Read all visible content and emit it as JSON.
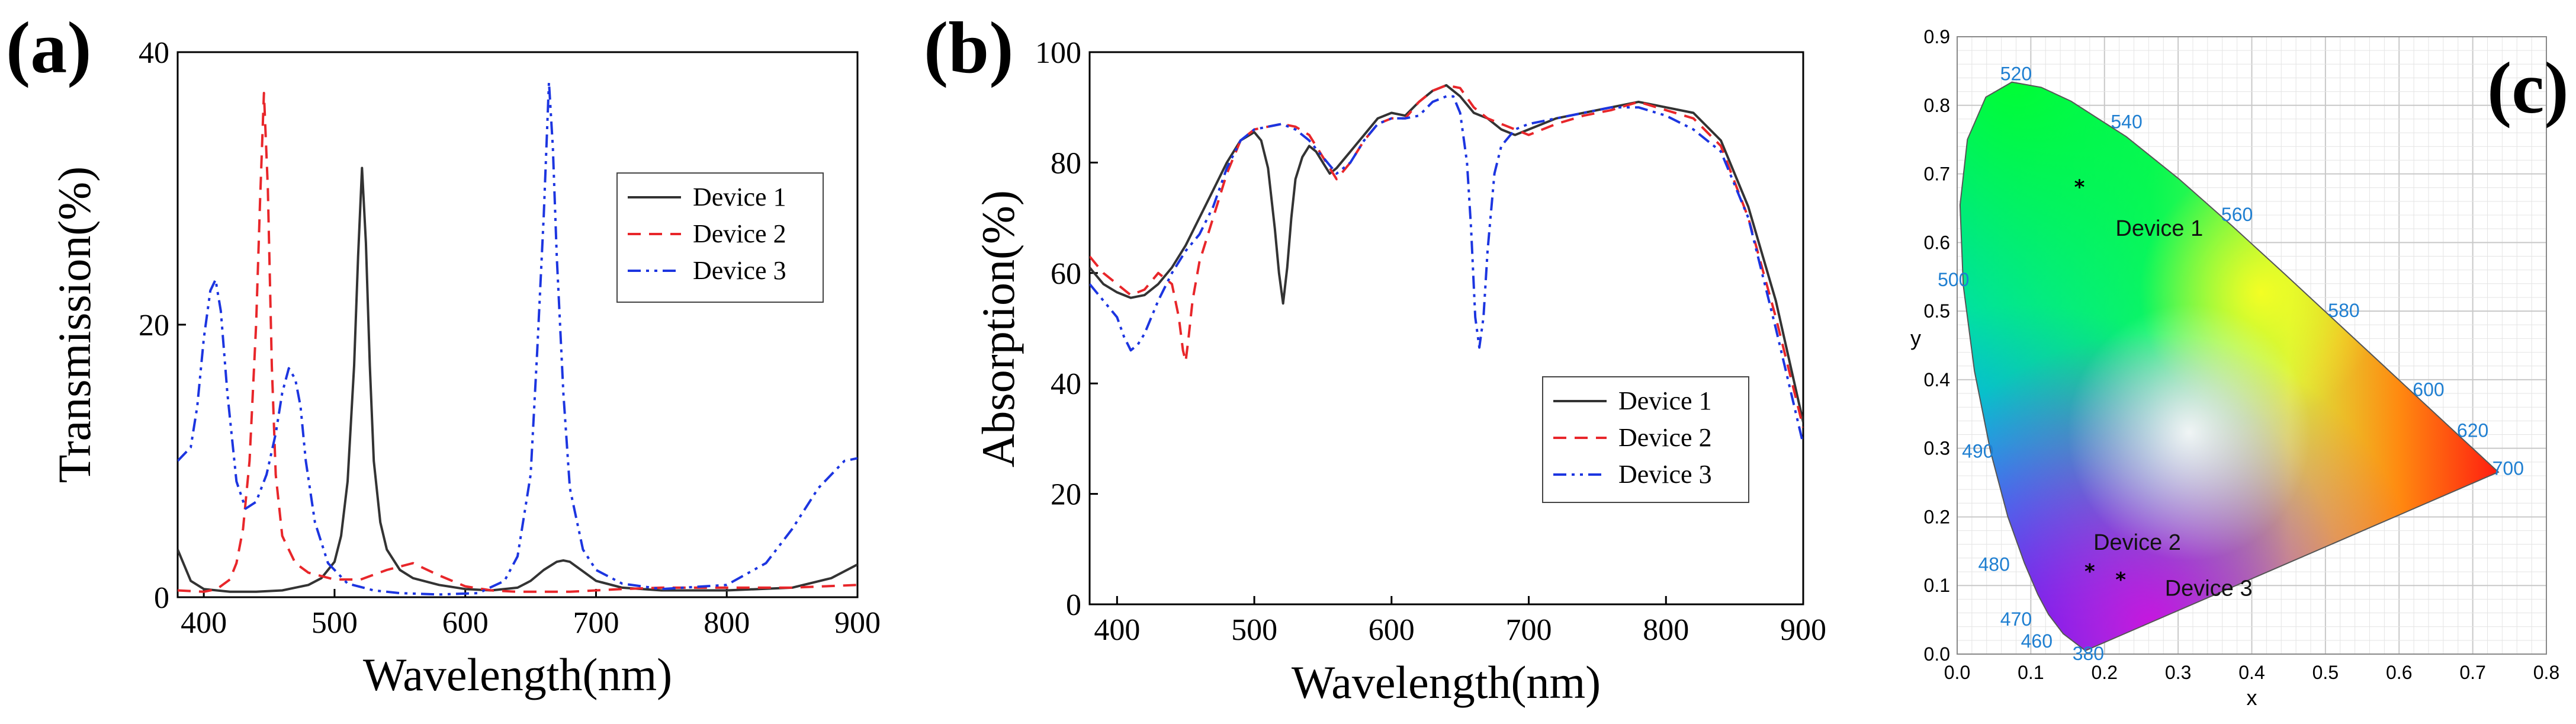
{
  "chart_data": [
    {
      "type": "line",
      "panel": "(a)",
      "xlabel": "Wavelength(nm)",
      "ylabel": "Transmission(%)",
      "xlim": [
        380,
        900
      ],
      "ylim": [
        0,
        40
      ],
      "xticks": [
        400,
        500,
        600,
        700,
        800,
        900
      ],
      "yticks": [
        0,
        20,
        40
      ],
      "legend": "center-right",
      "series": [
        {
          "name": "Device 1",
          "color": "#333333",
          "style": "solid",
          "x": [
            380,
            390,
            400,
            420,
            440,
            460,
            480,
            490,
            500,
            505,
            510,
            515,
            518,
            521,
            524,
            527,
            530,
            535,
            540,
            550,
            560,
            580,
            600,
            620,
            640,
            650,
            660,
            670,
            675,
            680,
            690,
            700,
            720,
            750,
            800,
            850,
            880,
            900
          ],
          "y": [
            3.5,
            1.2,
            0.6,
            0.4,
            0.4,
            0.5,
            0.9,
            1.4,
            2.6,
            4.5,
            8.5,
            17,
            25,
            31.5,
            26,
            17,
            10,
            5.5,
            3.5,
            2.0,
            1.4,
            0.9,
            0.6,
            0.5,
            0.7,
            1.2,
            2.0,
            2.6,
            2.7,
            2.6,
            1.9,
            1.2,
            0.7,
            0.5,
            0.5,
            0.7,
            1.4,
            2.4
          ]
        },
        {
          "name": "Device 2",
          "color": "#e8262a",
          "style": "dashed",
          "x": [
            380,
            400,
            410,
            420,
            425,
            430,
            435,
            440,
            443,
            446,
            449,
            452,
            455,
            460,
            470,
            480,
            500,
            520,
            540,
            560,
            580,
            600,
            620,
            640,
            660,
            680,
            700,
            720,
            750,
            800,
            850,
            900
          ],
          "y": [
            0.5,
            0.4,
            0.6,
            1.3,
            2.5,
            5,
            10,
            20,
            29,
            37,
            30,
            17,
            9,
            4.5,
            2.5,
            1.8,
            1.3,
            1.3,
            2.0,
            2.5,
            1.6,
            0.8,
            0.5,
            0.4,
            0.4,
            0.4,
            0.5,
            0.6,
            0.7,
            0.7,
            0.7,
            0.9
          ]
        },
        {
          "name": "Device 3",
          "color": "#1c35e0",
          "style": "dashdotdot",
          "x": [
            380,
            390,
            395,
            400,
            405,
            409,
            413,
            418,
            425,
            432,
            440,
            448,
            455,
            460,
            465,
            470,
            474,
            478,
            485,
            495,
            510,
            530,
            550,
            580,
            610,
            630,
            640,
            650,
            655,
            660,
            664,
            667,
            670,
            675,
            680,
            690,
            700,
            720,
            750,
            800,
            830,
            850,
            870,
            890,
            900
          ],
          "y": [
            10,
            11,
            14,
            19,
            22.5,
            23.3,
            21,
            15,
            8.5,
            6.5,
            7,
            9,
            12,
            15,
            16.8,
            16,
            14,
            10,
            5.5,
            2.5,
            1.0,
            0.5,
            0.3,
            0.2,
            0.3,
            1.2,
            3,
            9,
            18,
            28,
            37.8,
            33,
            25,
            15,
            8,
            3.5,
            2,
            1,
            0.6,
            0.9,
            2.5,
            5,
            8,
            10,
            10.2
          ]
        }
      ]
    },
    {
      "type": "line",
      "panel": "(b)",
      "xlabel": "Wavelength(nm)",
      "ylabel": "Absorption(%)",
      "xlim": [
        380,
        900
      ],
      "ylim": [
        0,
        100
      ],
      "xticks": [
        400,
        500,
        600,
        700,
        800,
        900
      ],
      "yticks": [
        0,
        20,
        40,
        60,
        80,
        100
      ],
      "legend": "bottom-right",
      "series": [
        {
          "name": "Device 1",
          "color": "#333333",
          "style": "solid",
          "x": [
            380,
            390,
            400,
            410,
            420,
            430,
            440,
            450,
            460,
            470,
            480,
            490,
            500,
            505,
            510,
            515,
            518,
            521,
            524,
            527,
            530,
            535,
            540,
            545,
            550,
            555,
            560,
            565,
            570,
            580,
            590,
            600,
            610,
            620,
            630,
            640,
            650,
            660,
            670,
            680,
            690,
            700,
            720,
            740,
            760,
            780,
            800,
            820,
            840,
            860,
            880,
            900
          ],
          "y": [
            61,
            58,
            56.5,
            55.5,
            56,
            58,
            61,
            65,
            70,
            75,
            80,
            84,
            85.5,
            84,
            79,
            68,
            60,
            54.5,
            61,
            70,
            77,
            81,
            83,
            82,
            80,
            78,
            79,
            80.5,
            82,
            85,
            88,
            89,
            88.5,
            91,
            93,
            94,
            92,
            89,
            88,
            86,
            85,
            86,
            88,
            89,
            90,
            91,
            90,
            89,
            84,
            72,
            55,
            33
          ]
        },
        {
          "name": "Device 2",
          "color": "#e8262a",
          "style": "dashed",
          "x": [
            380,
            390,
            400,
            410,
            420,
            430,
            440,
            445,
            448,
            450,
            452,
            455,
            460,
            470,
            480,
            490,
            500,
            510,
            520,
            530,
            540,
            550,
            560,
            570,
            580,
            590,
            600,
            610,
            620,
            630,
            640,
            650,
            660,
            670,
            680,
            690,
            700,
            720,
            740,
            760,
            780,
            800,
            820,
            840,
            860,
            880,
            900
          ],
          "y": [
            63,
            60,
            58,
            56,
            57,
            60,
            58,
            52,
            46,
            44,
            48,
            55,
            62,
            70,
            78,
            84,
            86,
            86.5,
            87,
            86.5,
            85,
            81,
            77,
            80,
            84,
            87,
            88,
            88,
            91,
            93,
            94,
            93.5,
            90,
            88,
            87,
            86,
            85,
            87,
            88.5,
            89.5,
            91,
            89.5,
            88,
            83,
            70,
            52,
            32
          ]
        },
        {
          "name": "Device 3",
          "color": "#1c35e0",
          "style": "dashdotdot",
          "x": [
            380,
            390,
            400,
            405,
            410,
            415,
            420,
            430,
            440,
            450,
            460,
            470,
            480,
            490,
            500,
            510,
            520,
            530,
            540,
            550,
            560,
            570,
            580,
            590,
            600,
            610,
            620,
            630,
            640,
            645,
            650,
            655,
            658,
            661,
            664,
            667,
            670,
            675,
            680,
            690,
            700,
            720,
            740,
            760,
            780,
            800,
            820,
            840,
            860,
            880,
            900
          ],
          "y": [
            58,
            55,
            52,
            48.5,
            46,
            47,
            49,
            55,
            60,
            64,
            67,
            72,
            79,
            84,
            86,
            86.5,
            87,
            86,
            84,
            81,
            78,
            80,
            84,
            87,
            88,
            88,
            88.5,
            91,
            92,
            92,
            89,
            80,
            68,
            52,
            46.5,
            52,
            64,
            78,
            83,
            86,
            87,
            88,
            89,
            90,
            90,
            88.5,
            86,
            82,
            70,
            50,
            29
          ]
        }
      ]
    },
    {
      "type": "scatter",
      "panel": "(c)",
      "xlabel": "x",
      "ylabel": "y",
      "xlim": [
        0,
        0.8
      ],
      "ylim": [
        0,
        0.9
      ],
      "xticks": [
        "0.0",
        "0.1",
        "0.2",
        "0.3",
        "0.4",
        "0.5",
        "0.6",
        "0.7",
        "0.8"
      ],
      "yticks": [
        "0.0",
        "0.1",
        "0.2",
        "0.3",
        "0.4",
        "0.5",
        "0.6",
        "0.7",
        "0.8",
        "0.9"
      ],
      "spectral_locus": [
        {
          "nm": 380,
          "x": 0.1741,
          "y": 0.005
        },
        {
          "nm": 460,
          "x": 0.144,
          "y": 0.0297
        },
        {
          "nm": 470,
          "x": 0.1241,
          "y": 0.0578
        },
        {
          "nm": 475,
          "x": 0.1096,
          "y": 0.0868
        },
        {
          "nm": 480,
          "x": 0.0913,
          "y": 0.1327
        },
        {
          "nm": 485,
          "x": 0.0687,
          "y": 0.2007
        },
        {
          "nm": 490,
          "x": 0.0454,
          "y": 0.295
        },
        {
          "nm": 495,
          "x": 0.0235,
          "y": 0.4127
        },
        {
          "nm": 500,
          "x": 0.0082,
          "y": 0.5384
        },
        {
          "nm": 505,
          "x": 0.0039,
          "y": 0.6548
        },
        {
          "nm": 510,
          "x": 0.0139,
          "y": 0.7502
        },
        {
          "nm": 515,
          "x": 0.0389,
          "y": 0.812
        },
        {
          "nm": 520,
          "x": 0.0743,
          "y": 0.8338
        },
        {
          "nm": 525,
          "x": 0.1142,
          "y": 0.8262
        },
        {
          "nm": 530,
          "x": 0.1547,
          "y": 0.8059
        },
        {
          "nm": 540,
          "x": 0.2296,
          "y": 0.7543
        },
        {
          "nm": 550,
          "x": 0.3016,
          "y": 0.6923
        },
        {
          "nm": 560,
          "x": 0.3731,
          "y": 0.6245
        },
        {
          "nm": 570,
          "x": 0.4441,
          "y": 0.5547
        },
        {
          "nm": 580,
          "x": 0.5125,
          "y": 0.4866
        },
        {
          "nm": 590,
          "x": 0.5752,
          "y": 0.4242
        },
        {
          "nm": 600,
          "x": 0.627,
          "y": 0.3725
        },
        {
          "nm": 620,
          "x": 0.6915,
          "y": 0.3083
        },
        {
          "nm": 700,
          "x": 0.7347,
          "y": 0.2653
        }
      ],
      "wavelength_labels": [
        {
          "text": "380",
          "x": 0.178,
          "y": 0.0
        },
        {
          "text": "460",
          "x": 0.108,
          "y": 0.018
        },
        {
          "text": "470",
          "x": 0.08,
          "y": 0.05
        },
        {
          "text": "480",
          "x": 0.05,
          "y": 0.13
        },
        {
          "text": "490",
          "x": 0.028,
          "y": 0.295
        },
        {
          "text": "500",
          "x": -0.005,
          "y": 0.545
        },
        {
          "text": "520",
          "x": 0.08,
          "y": 0.845
        },
        {
          "text": "540",
          "x": 0.23,
          "y": 0.775
        },
        {
          "text": "560",
          "x": 0.38,
          "y": 0.64
        },
        {
          "text": "580",
          "x": 0.525,
          "y": 0.5
        },
        {
          "text": "600",
          "x": 0.64,
          "y": 0.385
        },
        {
          "text": "620",
          "x": 0.7,
          "y": 0.325
        },
        {
          "text": "700",
          "x": 0.748,
          "y": 0.27
        }
      ],
      "points": [
        {
          "name": "Device 1",
          "x": 0.166,
          "y": 0.68,
          "label_x": 0.215,
          "label_y": 0.61
        },
        {
          "name": "Device 2",
          "x": 0.18,
          "y": 0.12,
          "label_x": 0.185,
          "label_y": 0.152
        },
        {
          "name": "Device 3",
          "x": 0.222,
          "y": 0.108,
          "label_x": 0.282,
          "label_y": 0.085
        }
      ]
    }
  ]
}
